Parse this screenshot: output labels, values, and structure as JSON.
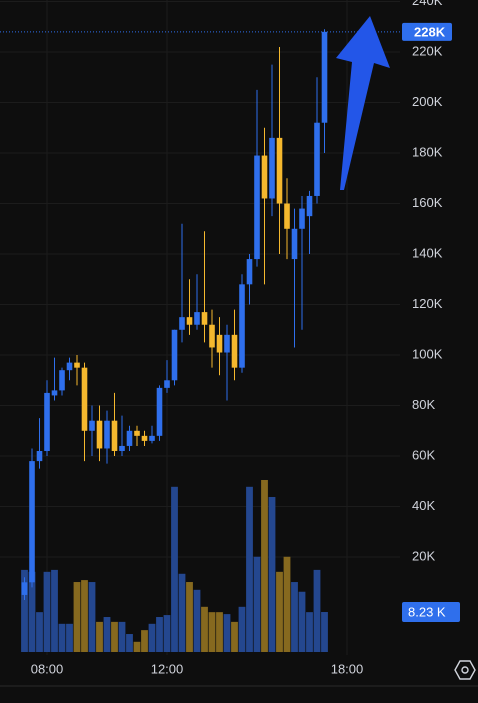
{
  "chart_data": {
    "type": "candlestick",
    "x": [
      "07:15",
      "07:30",
      "07:45",
      "08:00",
      "08:15",
      "08:30",
      "08:45",
      "09:00",
      "09:15",
      "09:30",
      "09:45",
      "10:00",
      "10:15",
      "10:30",
      "10:45",
      "11:00",
      "11:15",
      "11:30",
      "11:45",
      "12:00",
      "12:15",
      "12:30",
      "12:45",
      "13:00",
      "13:15",
      "13:30",
      "13:45",
      "14:00",
      "14:15",
      "14:30",
      "14:45",
      "15:00",
      "15:15",
      "15:30",
      "15:45",
      "16:00",
      "16:15",
      "16:30",
      "16:45",
      "17:00",
      "17:15"
    ],
    "open": [
      5,
      10,
      58,
      62,
      84,
      86,
      94,
      97,
      95,
      70,
      74,
      63,
      74,
      62,
      64,
      70,
      68,
      66,
      68,
      87,
      90,
      110,
      115,
      112,
      117,
      112,
      108,
      101,
      108,
      95,
      128,
      138,
      179,
      162,
      186,
      160,
      138,
      150,
      155,
      163,
      192
    ],
    "high": [
      12,
      63,
      75,
      90,
      99,
      95,
      99,
      100,
      97,
      80,
      80,
      78,
      85,
      76,
      72,
      72,
      70,
      72,
      88,
      98,
      110,
      152,
      130,
      132,
      149,
      118,
      115,
      112,
      118,
      132,
      140,
      205,
      190,
      215,
      222,
      170,
      158,
      163,
      165,
      210,
      229
    ],
    "low": [
      3,
      8,
      55,
      60,
      82,
      84,
      90,
      88,
      58,
      60,
      58,
      57,
      60,
      60,
      62,
      64,
      64,
      65,
      66,
      85,
      88,
      105,
      108,
      110,
      105,
      95,
      92,
      82,
      90,
      93,
      120,
      135,
      128,
      155,
      140,
      138,
      103,
      110,
      140,
      160,
      180
    ],
    "close": [
      10,
      58,
      62,
      85,
      86,
      94,
      97,
      95,
      70,
      74,
      63,
      74,
      62,
      64,
      70,
      68,
      66,
      68,
      87,
      90,
      110,
      115,
      112,
      117,
      112,
      103,
      101,
      108,
      95,
      128,
      138,
      179,
      162,
      186,
      160,
      150,
      150,
      158,
      163,
      192,
      228
    ],
    "volume": [
      16900,
      16500,
      8200,
      16500,
      16900,
      5800,
      5800,
      14400,
      14800,
      14400,
      6200,
      7200,
      6200,
      6200,
      3700,
      2100,
      4500,
      5800,
      7200,
      7600,
      34000,
      16100,
      14400,
      12800,
      9300,
      8200,
      8200,
      7800,
      6200,
      9300,
      34000,
      19600,
      35400,
      31900,
      16500,
      19600,
      14400,
      12400,
      8200,
      16900,
      8230
    ],
    "up_color": "#2f6fec",
    "down_color": "#f5b82e",
    "volume_up_color": "#24478f",
    "volume_down_color": "#86691f",
    "ylim": [
      -17.6,
      240.6
    ],
    "yticks": [
      {
        "value": 20,
        "label": "20K"
      },
      {
        "value": 40,
        "label": "40K"
      },
      {
        "value": 60,
        "label": "60K"
      },
      {
        "value": 80,
        "label": "80K"
      },
      {
        "value": 100,
        "label": "100K"
      },
      {
        "value": 120,
        "label": "120K"
      },
      {
        "value": 140,
        "label": "140K"
      },
      {
        "value": 160,
        "label": "160K"
      },
      {
        "value": 180,
        "label": "180K"
      },
      {
        "value": 200,
        "label": "200K"
      },
      {
        "value": 220,
        "label": "220K"
      },
      {
        "value": 240,
        "label": "240K"
      }
    ],
    "xticks": [
      "08:00",
      "12:00",
      "18:00"
    ],
    "last_price": {
      "value": 228,
      "label": "228K"
    },
    "last_volume": {
      "value": 8230,
      "label": "8.23 K"
    },
    "grid": true
  }
}
